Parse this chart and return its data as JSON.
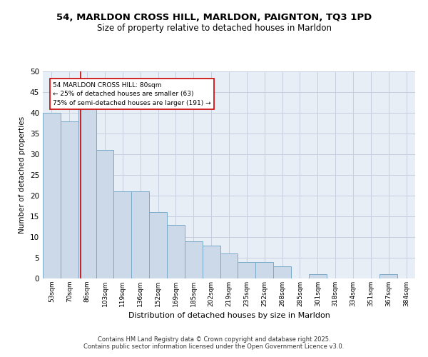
{
  "title_line1": "54, MARLDON CROSS HILL, MARLDON, PAIGNTON, TQ3 1PD",
  "title_line2": "Size of property relative to detached houses in Marldon",
  "xlabel": "Distribution of detached houses by size in Marldon",
  "ylabel": "Number of detached properties",
  "categories": [
    "53sqm",
    "70sqm",
    "86sqm",
    "103sqm",
    "119sqm",
    "136sqm",
    "152sqm",
    "169sqm",
    "185sqm",
    "202sqm",
    "219sqm",
    "235sqm",
    "252sqm",
    "268sqm",
    "285sqm",
    "301sqm",
    "318sqm",
    "334sqm",
    "351sqm",
    "367sqm",
    "384sqm"
  ],
  "values": [
    40,
    38,
    42,
    31,
    21,
    21,
    16,
    13,
    9,
    8,
    6,
    4,
    4,
    3,
    0,
    1,
    0,
    0,
    0,
    1,
    0
  ],
  "bar_color": "#ccd9e8",
  "bar_edge_color": "#7aaac8",
  "grid_color": "#c5cfe0",
  "bg_color": "#e8eef6",
  "red_line_color": "#cc0000",
  "annotation_text": "54 MARLDON CROSS HILL: 80sqm\n← 25% of detached houses are smaller (63)\n75% of semi-detached houses are larger (191) →",
  "annotation_box_color": "#ffffff",
  "annotation_box_edge": "#cc0000",
  "footer_line1": "Contains HM Land Registry data © Crown copyright and database right 2025.",
  "footer_line2": "Contains public sector information licensed under the Open Government Licence v3.0.",
  "ylim": [
    0,
    50
  ],
  "yticks": [
    0,
    5,
    10,
    15,
    20,
    25,
    30,
    35,
    40,
    45,
    50
  ]
}
